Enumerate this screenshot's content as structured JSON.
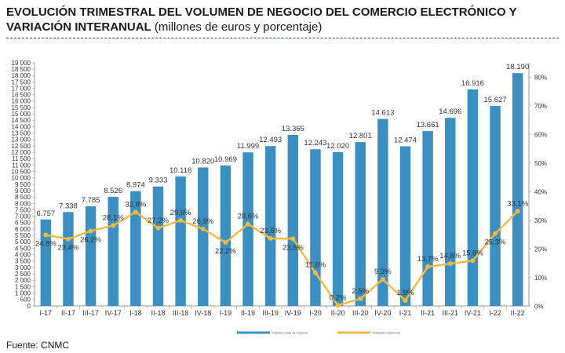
{
  "chart_data": {
    "type": "bar",
    "title_bold": "EVOLUCIÓN TRIMESTRAL DEL VOLUMEN DE NEGOCIO DEL COMERCIO ELECTRÓNICO Y VARIACIÓN INTERANUAL",
    "title_normal": "(millones de euros y porcentaje)",
    "categories": [
      "I-17",
      "II-17",
      "III-17",
      "IV-17",
      "I-18",
      "II-18",
      "III-18",
      "IV-18",
      "I-19",
      "II-19",
      "III-19",
      "IV-19",
      "I-20",
      "II-20",
      "III-20",
      "IV-20",
      "I-21",
      "II-21",
      "III-21",
      "IV-21",
      "I-22",
      "II-22"
    ],
    "series": [
      {
        "name": "Volumen total de negocio",
        "type": "bar",
        "color": "#3b8fc1",
        "values": [
          6757,
          7338,
          7785,
          8526,
          8974,
          9333,
          10116,
          10820,
          10969,
          11999,
          12493,
          13365,
          12243,
          12020,
          12801,
          14613,
          12474,
          13661,
          14696,
          16916,
          15627,
          18190
        ],
        "labels": [
          "6.757",
          "7.338",
          "7.785",
          "8.526",
          "8.974",
          "9.333",
          "10.116",
          "10.820",
          "10.969",
          "11.999",
          "12.493",
          "13.365",
          "12.243",
          "12.020",
          "12.801",
          "14.613",
          "12.474",
          "13.661",
          "14.696",
          "16.916",
          "15.627",
          "18.190"
        ]
      },
      {
        "name": "Variación interanual",
        "type": "line",
        "color": "#f5b940",
        "values": [
          24.8,
          23.4,
          26.2,
          28.1,
          32.8,
          27.2,
          29.9,
          26.9,
          22.2,
          28.6,
          23.6,
          23.5,
          11.6,
          0.2,
          2.5,
          9.3,
          1.9,
          13.7,
          14.8,
          15.8,
          25.3,
          33.1
        ],
        "labels": [
          "24,8%",
          "23,4%",
          "26,2%",
          "28,1%",
          "32,8%",
          "27,2%",
          "29,9%",
          "26,9%",
          "22,2%",
          "28,6%",
          "23,6%",
          "23,5%",
          "11,6%",
          "0,2%",
          "2,5%",
          "9,3%",
          "1,9%",
          "13,7%",
          "14,8%",
          "15,8%",
          "25,3%",
          "33,1%"
        ]
      }
    ],
    "y_left": {
      "ylim": [
        0,
        19000
      ],
      "ticks": [
        "0",
        "500",
        "1 000",
        "1 500",
        "2 000",
        "2 500",
        "3 000",
        "3 500",
        "4 000",
        "4 500",
        "5 000",
        "5 500",
        "6 000",
        "6 500",
        "7 000",
        "7 500",
        "8 000",
        "8 500",
        "9 000",
        "9 500",
        "10 000",
        "10 500",
        "11 000",
        "11 500",
        "12 000",
        "12 500",
        "13 000",
        "13 500",
        "14 000",
        "14 500",
        "15 000",
        "15 500",
        "16 000",
        "16 500",
        "17 000",
        "17 500",
        "18 000",
        "18 500",
        "19 000"
      ]
    },
    "y_right": {
      "ylim": [
        0,
        85
      ],
      "ticks": [
        "0%",
        "10%",
        "20%",
        "30%",
        "40%",
        "50%",
        "60%",
        "70%",
        "80%"
      ]
    },
    "legend_position": "bottom",
    "grid": false
  },
  "footer": {
    "source": "Fuente: CNMC"
  }
}
